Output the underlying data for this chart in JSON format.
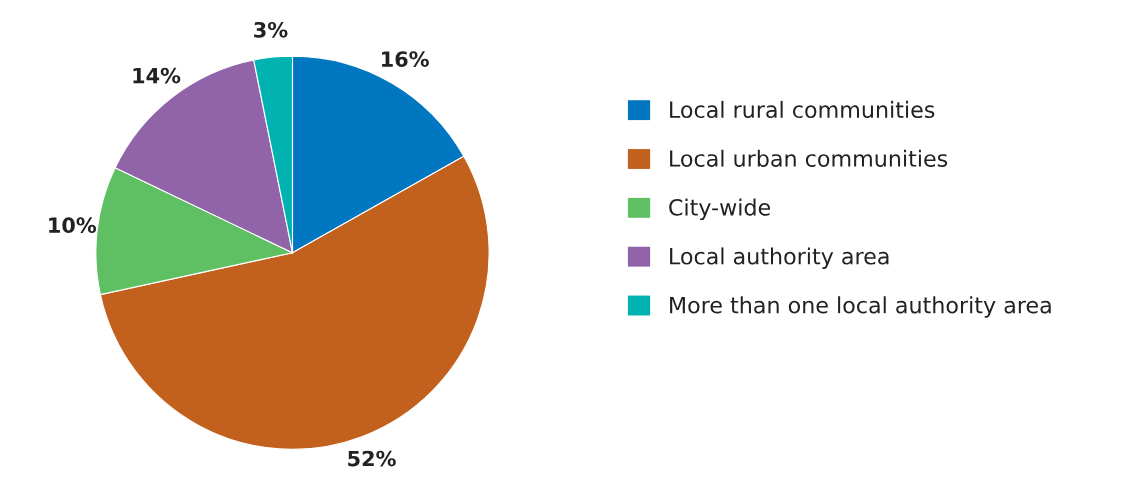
{
  "chart_data": {
    "type": "pie",
    "categories": [
      "Local rural communities",
      "Local urban communities",
      "City-wide",
      "Local authority area",
      "More than one local authority area"
    ],
    "values": [
      16,
      52,
      10,
      14,
      3
    ],
    "colors": [
      "#0077c0",
      "#c2601e",
      "#5fbf63",
      "#9164aa",
      "#00b2b0"
    ],
    "value_labels": [
      "16%",
      "52%",
      "10%",
      "14%",
      "3%"
    ],
    "legend": "right"
  }
}
